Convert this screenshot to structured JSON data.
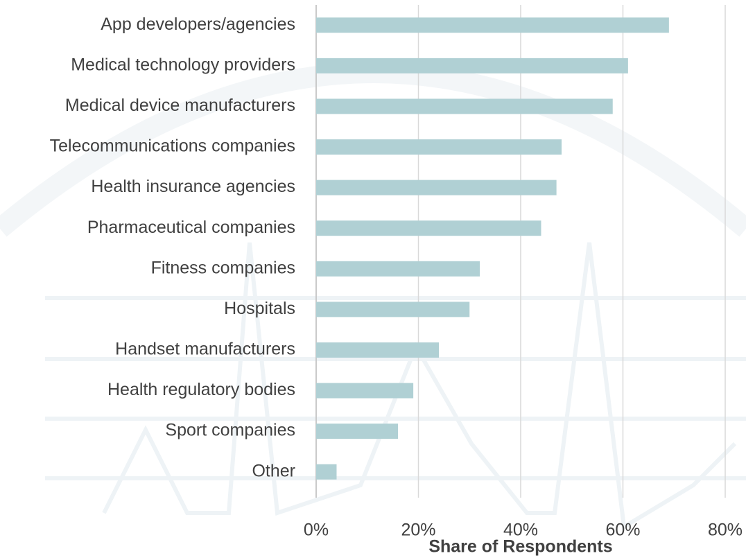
{
  "chart_data": {
    "type": "bar",
    "orientation": "horizontal",
    "x_label": "Share of Respondents",
    "categories": [
      "App developers/agencies",
      "Medical technology providers",
      "Medical device manufacturers",
      "Telecommunications companies",
      "Health insurance agencies",
      "Pharmaceutical companies",
      "Fitness companies",
      "Hospitals",
      "Handset manufacturers",
      "Health regulatory bodies",
      "Sport companies",
      "Other"
    ],
    "values": [
      69,
      61,
      58,
      48,
      47,
      44,
      32,
      30,
      24,
      19,
      16,
      4
    ],
    "color": "#b0d0d4",
    "xlim": [
      0,
      80
    ],
    "xticks": [
      {
        "value": 0,
        "label": "0%"
      },
      {
        "value": 20,
        "label": "20%"
      },
      {
        "value": 40,
        "label": "40%"
      },
      {
        "value": 60,
        "label": "60%"
      },
      {
        "value": 80,
        "label": "80%"
      }
    ],
    "grid": true
  }
}
